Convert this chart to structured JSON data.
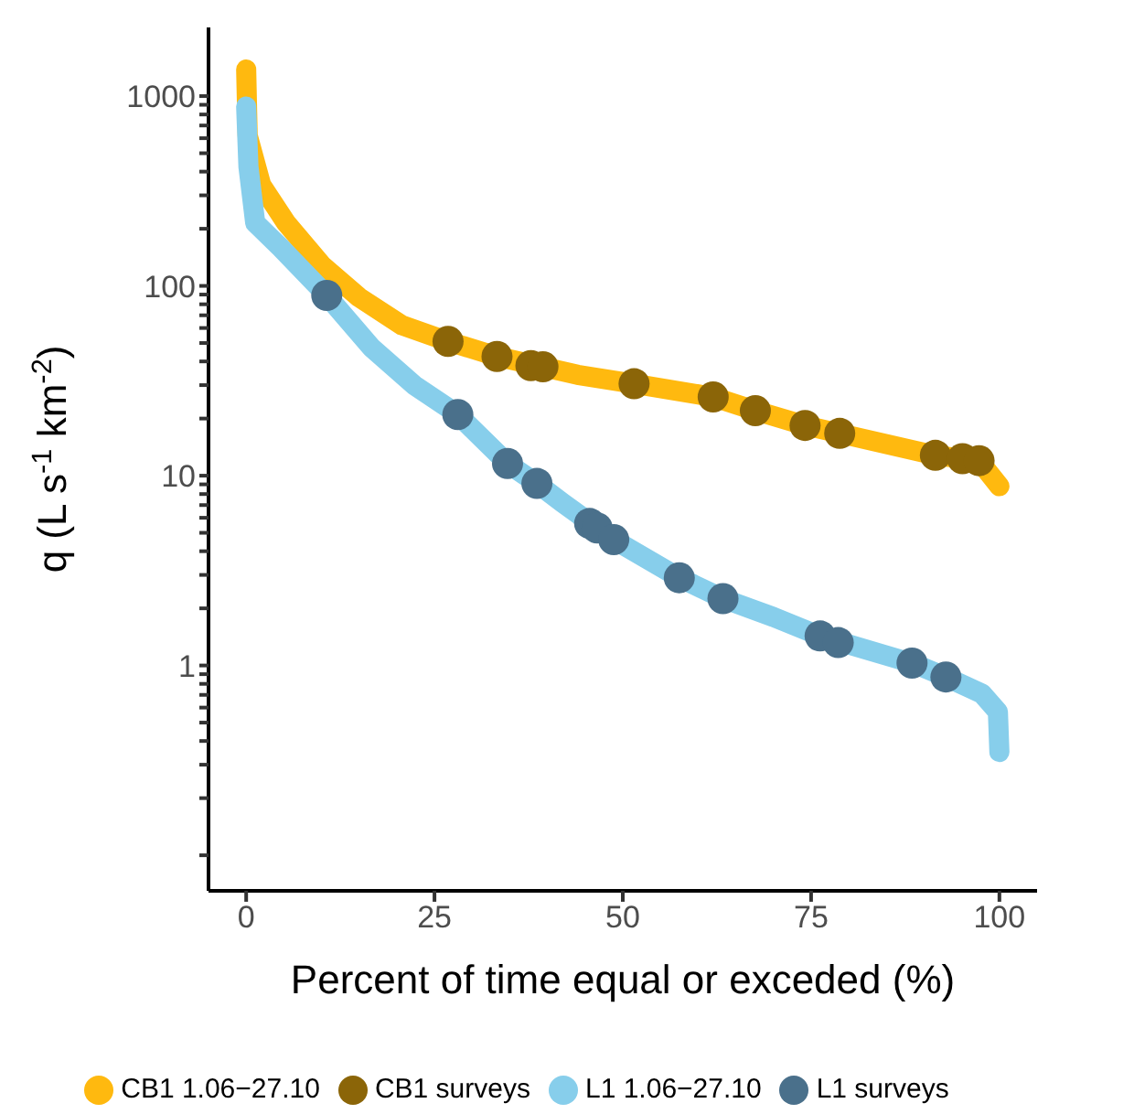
{
  "chart_data": {
    "type": "line",
    "xlabel": "Percent of time equal or exceded (%)",
    "ylabel": "q (L s$^{-1}$ km$^{-2}$)",
    "xlim": [
      -5,
      105
    ],
    "xticks": [
      0,
      25,
      50,
      75,
      100
    ],
    "ylim": [
      0.065,
      2300
    ],
    "log": "y",
    "yticks": [
      {
        "value": 0.1,
        "label": null
      },
      {
        "value": 0.2,
        "label": null
      },
      {
        "value": 0.3,
        "label": null
      },
      {
        "value": 0.4,
        "label": null
      },
      {
        "value": 0.5,
        "label": null
      },
      {
        "value": 0.6,
        "label": null
      },
      {
        "value": 0.7,
        "label": null
      },
      {
        "value": 0.8,
        "label": null
      },
      {
        "value": 0.9,
        "label": null
      },
      1,
      {
        "value": 2,
        "label": null
      },
      {
        "value": 3,
        "label": null
      },
      {
        "value": 4,
        "label": null
      },
      {
        "value": 5,
        "label": null
      },
      {
        "value": 6,
        "label": null
      },
      {
        "value": 7,
        "label": null
      },
      {
        "value": 8,
        "label": null
      },
      {
        "value": 9,
        "label": null
      },
      10,
      {
        "value": 20,
        "label": null
      },
      {
        "value": 30,
        "label": null
      },
      {
        "value": 40,
        "label": null
      },
      {
        "value": 50,
        "label": null
      },
      {
        "value": 60,
        "label": null
      },
      {
        "value": 70,
        "label": null
      },
      {
        "value": 80,
        "label": null
      },
      {
        "value": 90,
        "label": null
      },
      100,
      {
        "value": 200,
        "label": null
      },
      {
        "value": 300,
        "label": null
      },
      {
        "value": 400,
        "label": null
      },
      {
        "value": 500,
        "label": null
      },
      {
        "value": 600,
        "label": null
      },
      {
        "value": 700,
        "label": null
      },
      {
        "value": 800,
        "label": null
      },
      {
        "value": 900,
        "label": null
      },
      1000
    ],
    "grid": false,
    "legend": "bottom",
    "series": [
      {
        "name": "CB1 1.06−27.10",
        "marker": "none",
        "color": "#ffb90f",
        "x": [
          0,
          0.2,
          2,
          5.3,
          10.1,
          15,
          20.7,
          26.8,
          33.3,
          44,
          51.5,
          62,
          67.6,
          74.2,
          78.8,
          91.5,
          95.1,
          97.3,
          100
        ],
        "values": [
          1380,
          620,
          340,
          215,
          128,
          87,
          62,
          51,
          42.5,
          34,
          30.5,
          26,
          22,
          18.4,
          16.7,
          12.8,
          12.3,
          12,
          8.8
        ]
      },
      {
        "name": "CB1 surveys",
        "type": "scatter",
        "marker": "circle",
        "color": "#8b6508",
        "x": [
          26.8,
          33.3,
          37.8,
          39.4,
          51.5,
          62,
          67.6,
          74.2,
          78.8,
          91.5,
          95.1,
          97.3
        ],
        "values": [
          51,
          42.5,
          38,
          37.5,
          30.5,
          26,
          22,
          18.4,
          16.7,
          12.8,
          12.3,
          12
        ]
      },
      {
        "name": "L1 1.06−27.10",
        "marker": "none",
        "color": "#87ceeb",
        "x": [
          0,
          0.3,
          1.2,
          4.5,
          10.7,
          16.6,
          22.3,
          28.1,
          34.7,
          38.6,
          42,
          48.8,
          57.5,
          63.3,
          70,
          76.2,
          88.4,
          92.9,
          97.7,
          99.8,
          100
        ],
        "values": [
          880,
          425,
          215,
          160,
          89,
          47.5,
          30,
          21,
          11.6,
          9.1,
          7.2,
          4.6,
          2.9,
          2.25,
          1.8,
          1.43,
          1.03,
          0.87,
          0.71,
          0.57,
          0.35
        ]
      },
      {
        "name": "L1 surveys",
        "type": "scatter",
        "marker": "circle",
        "color": "#4a708b",
        "x": [
          10.7,
          28.1,
          34.7,
          38.6,
          45.6,
          46.6,
          48.8,
          57.5,
          63.3,
          76.2,
          78.6,
          88.4,
          92.9
        ],
        "values": [
          89,
          21,
          11.6,
          9.1,
          5.6,
          5.3,
          4.6,
          2.9,
          2.25,
          1.43,
          1.32,
          1.03,
          0.87
        ]
      }
    ]
  }
}
